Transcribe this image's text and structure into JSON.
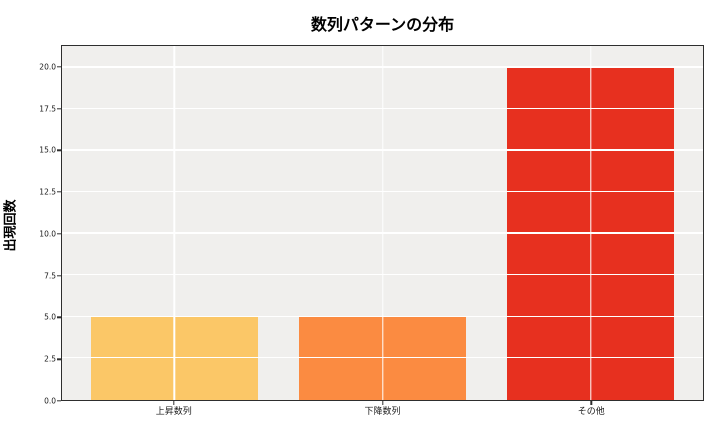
{
  "chart_data": {
    "type": "bar",
    "title": "数列パターンの分布",
    "ylabel": "出現回数",
    "xlabel": "",
    "categories": [
      "上昇数列",
      "下降数列",
      "その他"
    ],
    "values": [
      5,
      5,
      20
    ],
    "bar_colors": [
      "#FBC767",
      "#FB8B41",
      "#E7301F"
    ],
    "yticks": [
      0.0,
      2.5,
      5.0,
      7.5,
      10.0,
      12.5,
      15.0,
      17.5,
      20.0
    ],
    "ytick_labels": [
      "0.0",
      "2.5",
      "5.0",
      "7.5",
      "10.0",
      "12.5",
      "15.0",
      "17.5",
      "20.0"
    ],
    "ylim": [
      0,
      21.3
    ],
    "grid": true,
    "grid_color": "#ffffff",
    "grid_over_bars": true,
    "plot_bg_color": "#F0EFED",
    "figure_bg_color": "#FFFFFF",
    "spine_color": "#2E2E2E",
    "legend": "none"
  }
}
